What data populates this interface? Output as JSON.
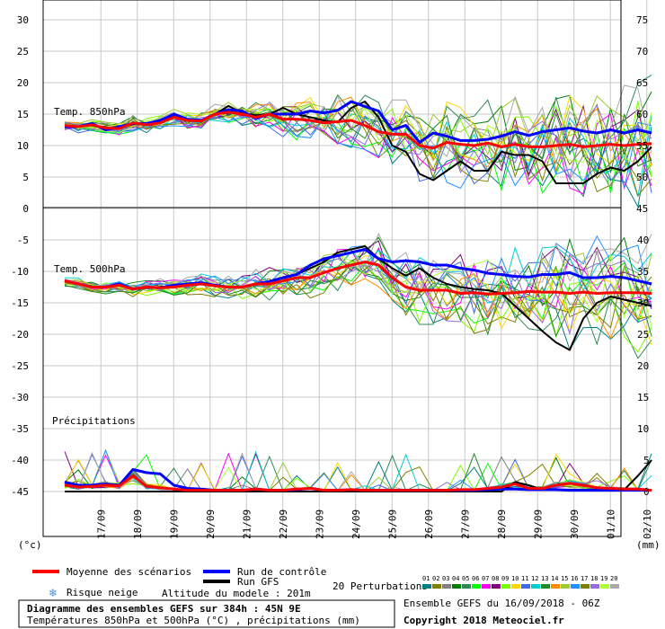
{
  "chart_data": {
    "type": "line",
    "dates": [
      "17/09",
      "18/09",
      "19/09",
      "20/09",
      "21/09",
      "22/09",
      "23/09",
      "24/09",
      "25/09",
      "26/09",
      "27/09",
      "28/09",
      "29/09",
      "30/09",
      "01/10",
      "02/10"
    ],
    "left_ticks": {
      "t850": [
        "30",
        "25",
        "20",
        "15",
        "10",
        "5",
        "0"
      ],
      "t500": [
        "-5",
        "-10",
        "-15",
        "-20",
        "-25",
        "-30",
        "-35",
        "-40",
        "-45"
      ]
    },
    "right_ticks": {
      "top": [
        "75",
        "70",
        "65",
        "60",
        "55",
        "50",
        "45"
      ],
      "bottom": [
        "40",
        "35",
        "30",
        "25",
        "20",
        "15",
        "10",
        "5",
        "0"
      ]
    },
    "panels": {
      "t850": {
        "label": "Temp. 850hPa",
        "ylim": [
          0,
          33
        ]
      },
      "t500": {
        "label": "Temp. 500hPa"
      },
      "precip": {
        "label": "Précipitations"
      }
    },
    "t_x": [
      0,
      0.375,
      0.75,
      1.125,
      1.5,
      1.875,
      2.25,
      2.625,
      3,
      3.375,
      3.75,
      4.125,
      4.5,
      4.875,
      5.25,
      5.625,
      6,
      6.375,
      6.75,
      7.125,
      7.5,
      7.875,
      8.25,
      8.625,
      9,
      9.375,
      9.75,
      10.125,
      10.5,
      10.875,
      11.25,
      11.625,
      12,
      12.375,
      12.75,
      13.125,
      13.5,
      13.875,
      14.25,
      14.625,
      15,
      15.375,
      15.75,
      16.125
    ],
    "t850_series": {
      "mean": [
        13.2,
        13,
        13.3,
        12.8,
        12.7,
        13.6,
        13.3,
        13.6,
        14.5,
        14,
        13.9,
        15,
        15.3,
        15,
        14.5,
        15,
        14.2,
        14.2,
        14,
        13.6,
        13.8,
        14,
        13.2,
        12.2,
        11.8,
        11.8,
        10,
        9.6,
        10.5,
        10.2,
        10,
        10.4,
        9.8,
        10.2,
        9.8,
        9.8,
        10,
        10.2,
        9.8,
        10,
        10.2,
        10,
        10.2,
        10.3
      ],
      "control": [
        13,
        13,
        13.5,
        12.5,
        13,
        13.5,
        13.5,
        14,
        15,
        14.2,
        14,
        15,
        15.7,
        15.5,
        14.3,
        15,
        15,
        15,
        15.5,
        15.2,
        15.6,
        17,
        16.2,
        15.5,
        12.5,
        13.2,
        10.5,
        12,
        11.5,
        10.8,
        10.8,
        11,
        11.5,
        12.2,
        11.6,
        12.2,
        12.5,
        12.8,
        12.3,
        12,
        12.5,
        12,
        12.5,
        12
      ],
      "gfs": [
        13,
        13,
        13.4,
        12.5,
        12.8,
        13.4,
        13.4,
        13.8,
        14.9,
        14.2,
        14,
        15,
        16.3,
        15.2,
        14.8,
        15,
        16,
        15,
        14.5,
        14,
        13.7,
        16,
        17,
        14.5,
        10,
        9,
        5.5,
        4.5,
        6,
        7.5,
        6,
        6,
        9,
        8.5,
        8.5,
        7.5,
        4,
        4,
        4,
        5.5,
        6.5,
        6,
        7.5,
        9.8
      ]
    },
    "t500_series": {
      "mean": [
        -11.5,
        -12,
        -12.5,
        -12.5,
        -12.2,
        -12.8,
        -12.5,
        -12.6,
        -12.5,
        -12.2,
        -12,
        -12.3,
        -12.5,
        -12.5,
        -12,
        -12,
        -11.5,
        -11,
        -11,
        -10.2,
        -9.5,
        -9,
        -8.5,
        -9,
        -11,
        -12.5,
        -13,
        -13,
        -13,
        -13.5,
        -13.4,
        -13.6,
        -13.5,
        -13.4,
        -13.2,
        -13.3,
        -13.3,
        -13.5,
        -13.3,
        -13.5,
        -13.4,
        -13.4,
        -13.4,
        -13.5
      ],
      "control": [
        -11.5,
        -12,
        -12.5,
        -12.5,
        -12,
        -12.8,
        -12.5,
        -12.6,
        -12.2,
        -12,
        -11.8,
        -12.2,
        -12.5,
        -12.5,
        -12,
        -11.6,
        -11,
        -10.5,
        -9,
        -8,
        -7.5,
        -7,
        -6.5,
        -8,
        -8.5,
        -8.3,
        -8.5,
        -9,
        -9,
        -9.5,
        -9.8,
        -10.3,
        -10.5,
        -10.8,
        -10.9,
        -10.5,
        -10.5,
        -10.2,
        -11,
        -11,
        -10.8,
        -11,
        -11.5,
        -12
      ],
      "gfs": [
        -11.5,
        -12,
        -12.5,
        -12.5,
        -12,
        -12.8,
        -12.6,
        -12.6,
        -12.3,
        -12,
        -11.8,
        -12.2,
        -12.5,
        -12.5,
        -12,
        -11.8,
        -11,
        -10.5,
        -9.5,
        -8.5,
        -7,
        -6.5,
        -6,
        -8,
        -9.5,
        -10.7,
        -9.5,
        -11,
        -12,
        -12.5,
        -12.8,
        -13,
        -13.5,
        -15.5,
        -17.5,
        -19.5,
        -21.3,
        -22.5,
        -17.5,
        -15,
        -14,
        -14.5,
        -15,
        -15.5
      ]
    },
    "precip_series": {
      "mean": [
        -44,
        -44.3,
        -44.2,
        -44,
        -44.1,
        -42.5,
        -44.2,
        -44.4,
        -44.6,
        -44.8,
        -44.8,
        -44.8,
        -44.8,
        -44.8,
        -44.6,
        -44.8,
        -44.8,
        -44.6,
        -44.5,
        -44.8,
        -44.8,
        -44.7,
        -44.8,
        -44.8,
        -44.8,
        -44.8,
        -44.8,
        -44.8,
        -44.8,
        -44.7,
        -44.7,
        -44.5,
        -44.3,
        -43.8,
        -44.5,
        -44.5,
        -44,
        -43.7,
        -44,
        -44.4,
        -44.5,
        -44.6,
        -44.6,
        -44.8
      ],
      "control": [
        -43.5,
        -44,
        -44,
        -43.8,
        -44,
        -41.5,
        -42,
        -42.2,
        -44,
        -44.5,
        -44.6,
        -44.8,
        -44.8,
        -44.8,
        -44.6,
        -44.8,
        -44.8,
        -44.7,
        -44.5,
        -44.8,
        -44.8,
        -44.7,
        -44.8,
        -44.8,
        -44.8,
        -44.8,
        -44.8,
        -44.8,
        -44.8,
        -44.8,
        -44.8,
        -44.7,
        -44.6,
        -44.6,
        -44.7,
        -44.7,
        -44.7,
        -44.8,
        -44.8,
        -44.8,
        -44.8,
        -44.8,
        -44.8,
        -44.8
      ],
      "gfs": [
        -45,
        -45,
        -45,
        -45,
        -45,
        -45,
        -45,
        -45,
        -45,
        -45,
        -45,
        -45,
        -45,
        -45,
        -45,
        -45,
        -45,
        -45,
        -45,
        -45,
        -45,
        -45,
        -45,
        -45,
        -45,
        -45,
        -45,
        -45,
        -45,
        -45,
        -45,
        -45,
        -45,
        -43.5,
        -44,
        -44.7,
        -44.7,
        -44.7,
        -44.7,
        -44.7,
        -44.7,
        -44.7,
        -42.5,
        -40
      ]
    },
    "perturbation_colors": [
      "#008080",
      "#808000",
      "#808080",
      "#008000",
      "#2e8b57",
      "#00ff00",
      "#ff00ff",
      "#800080",
      "#7cfc00",
      "#ffd700",
      "#4169e1",
      "#00ced1",
      "#228b22",
      "#ff8c00",
      "#9acd32",
      "#1e90ff",
      "#808000",
      "#9370db",
      "#adff2f",
      "#a9a9a9"
    ],
    "perturbation_numbers": [
      "01",
      "02",
      "03",
      "04",
      "05",
      "06",
      "07",
      "08",
      "09",
      "10",
      "11",
      "12",
      "13",
      "14",
      "15",
      "16",
      "17",
      "18",
      "19",
      "20"
    ],
    "legend": {
      "mean": "Moyenne des scénarios",
      "control": "Run de contrôle",
      "gfs": "Run GFS",
      "perturbations": "20 Perturbations",
      "snow": "Risque neige",
      "altitude": "Altitude du modele : 201m",
      "units_left": "(°c)",
      "units_right": "(mm)"
    },
    "colors": {
      "mean": "#ff0000",
      "control": "#0000ff",
      "gfs": "#000000"
    },
    "title": "Diagramme des ensembles GEFS sur 384h : 45N 9E",
    "subtitle": "Températures 850hPa et 500hPa (°C) , précipitations (mm)",
    "run_info": "Ensemble GEFS du 16/09/2018 - 06Z",
    "copyright": "Copyright 2018 Meteociel.fr"
  }
}
